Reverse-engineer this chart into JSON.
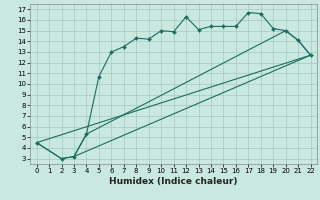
{
  "title": "",
  "xlabel": "Humidex (Indice chaleur)",
  "bg_color": "#c8e8e0",
  "grid_color": "#a8c8c0",
  "line_color": "#1a6e60",
  "xlim": [
    -0.5,
    22.5
  ],
  "ylim": [
    2.5,
    17.5
  ],
  "xticks": [
    0,
    1,
    2,
    3,
    4,
    5,
    6,
    7,
    8,
    9,
    10,
    11,
    12,
    13,
    14,
    15,
    16,
    17,
    18,
    19,
    20,
    21,
    22
  ],
  "yticks": [
    3,
    4,
    5,
    6,
    7,
    8,
    9,
    10,
    11,
    12,
    13,
    14,
    15,
    16,
    17
  ],
  "series": [
    {
      "x": [
        0,
        2,
        3,
        4,
        5,
        6,
        7,
        8,
        9,
        10,
        11,
        12,
        13,
        14,
        15,
        16,
        17,
        18,
        19,
        20,
        21,
        22
      ],
      "y": [
        4.5,
        3.0,
        3.2,
        5.3,
        10.7,
        13.0,
        13.5,
        14.3,
        14.2,
        15.0,
        14.9,
        16.3,
        15.1,
        15.4,
        15.4,
        15.4,
        16.7,
        16.6,
        15.2,
        15.0,
        14.1,
        12.7
      ],
      "has_markers": true
    },
    {
      "x": [
        0,
        22
      ],
      "y": [
        4.5,
        12.7
      ],
      "has_markers": false
    },
    {
      "x": [
        3,
        22
      ],
      "y": [
        3.2,
        12.7
      ],
      "has_markers": false
    },
    {
      "x": [
        0,
        2,
        3,
        4,
        20,
        21,
        22
      ],
      "y": [
        4.5,
        3.0,
        3.2,
        5.3,
        15.0,
        14.1,
        12.7
      ],
      "has_markers": false
    }
  ]
}
